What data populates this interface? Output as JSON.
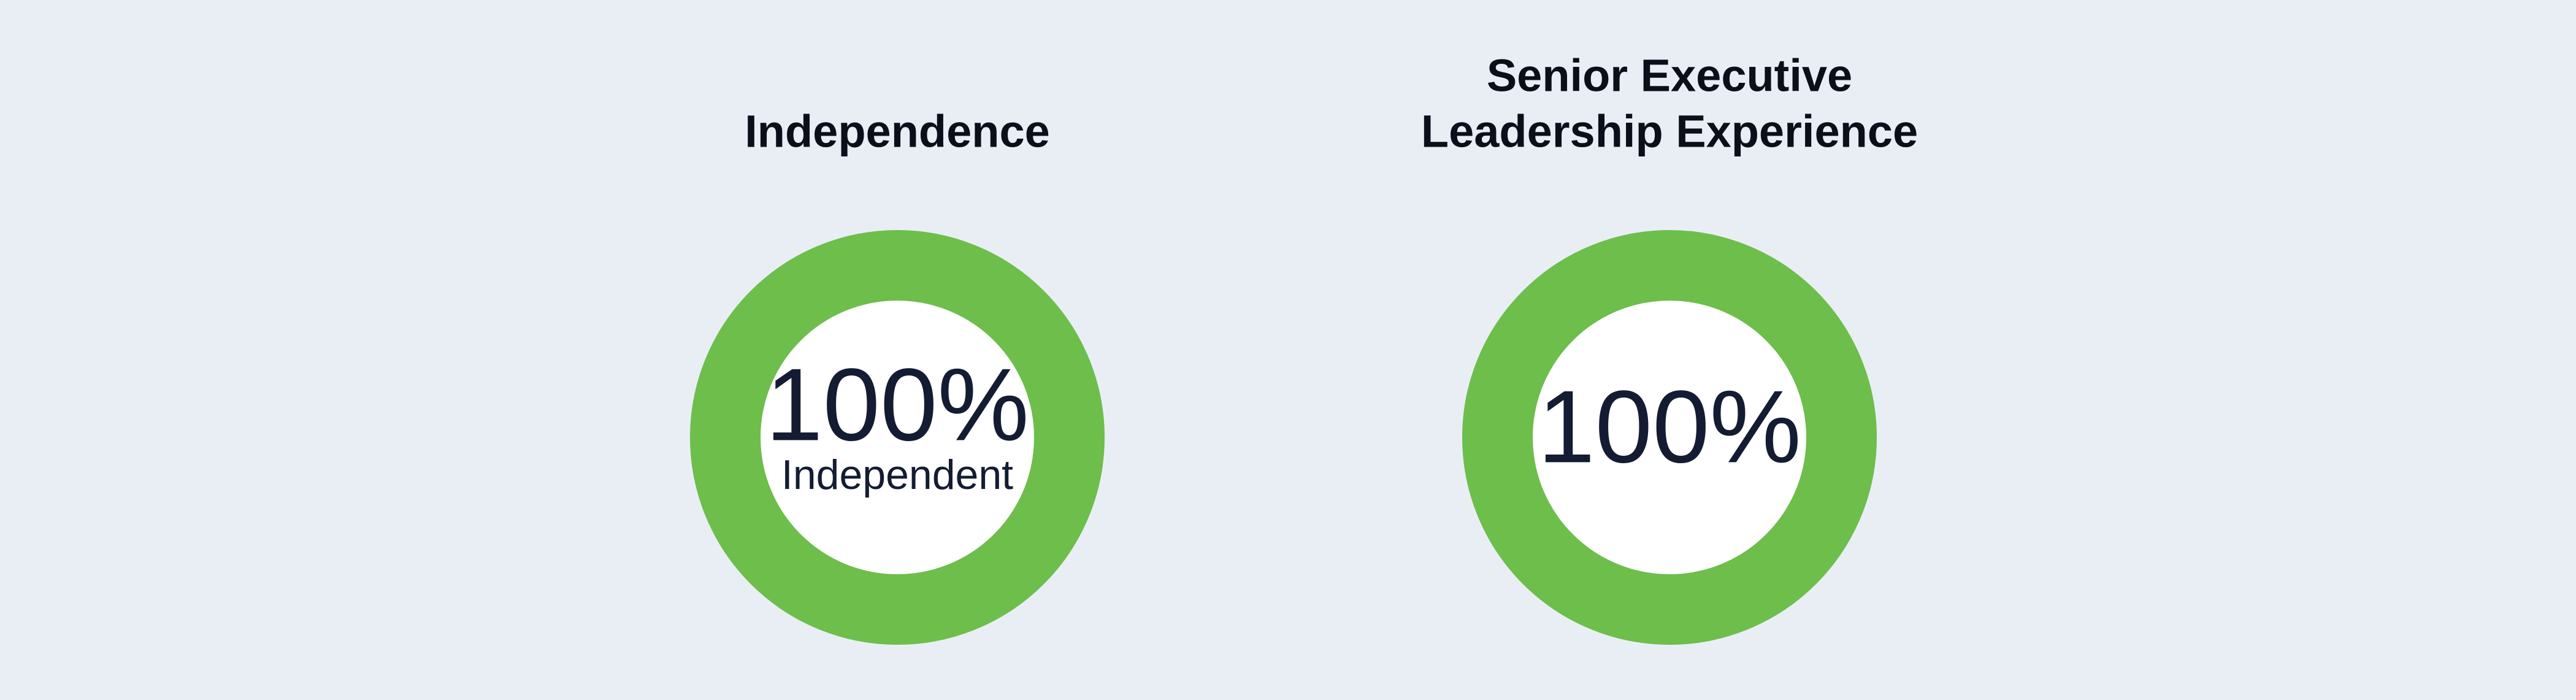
{
  "chart_data": [
    {
      "type": "donut",
      "title": [
        "Independence"
      ],
      "values": [
        100
      ],
      "value_labels": [
        "100%"
      ],
      "subtitle": "Independent",
      "color": "#6dbe4b"
    },
    {
      "type": "donut",
      "title": [
        "Senior Executive",
        "Leadership Experience"
      ],
      "values": [
        100
      ],
      "value_labels": [
        "100%"
      ],
      "color": "#6dbe4b"
    }
  ]
}
